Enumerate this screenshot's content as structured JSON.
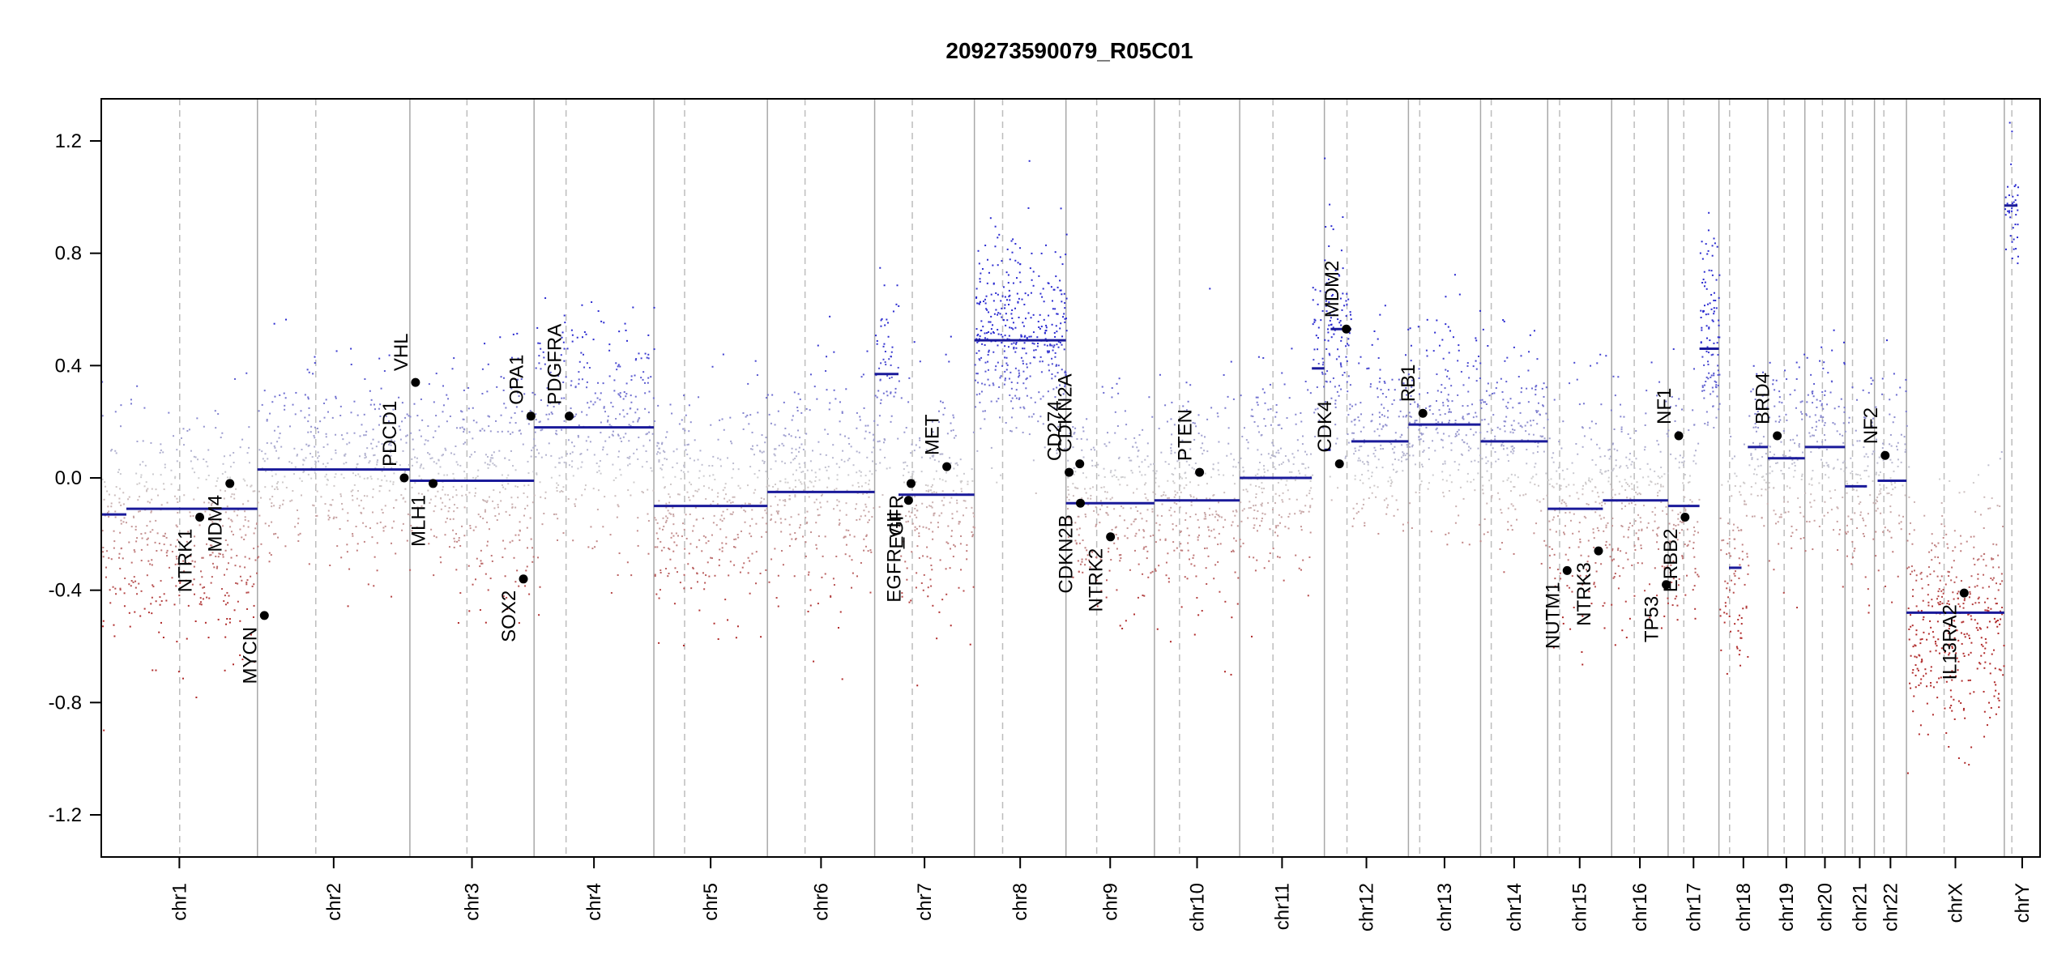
{
  "chart_data": {
    "type": "scatter",
    "title": "209273590079_R05C01",
    "xlabel": "",
    "ylabel": "",
    "ylim": [
      -1.35,
      1.35
    ],
    "y_ticks": [
      "1.2",
      "0.8",
      "0.4",
      "0.0",
      "-0.4",
      "-0.8",
      "-1.2"
    ],
    "y_tick_values": [
      1.2,
      0.8,
      0.4,
      0.0,
      -0.4,
      -0.8,
      -1.2
    ],
    "chromosomes": [
      {
        "name": "chr1",
        "start": 0,
        "end": 249,
        "centromere": 125
      },
      {
        "name": "chr2",
        "start": 249,
        "end": 492,
        "centromere": 342
      },
      {
        "name": "chr3",
        "start": 492,
        "end": 690,
        "centromere": 583
      },
      {
        "name": "chr4",
        "start": 690,
        "end": 881,
        "centromere": 741
      },
      {
        "name": "chr5",
        "start": 881,
        "end": 1062,
        "centromere": 930
      },
      {
        "name": "chr6",
        "start": 1062,
        "end": 1233,
        "centromere": 1122
      },
      {
        "name": "chr7",
        "start": 1233,
        "end": 1392,
        "centromere": 1293
      },
      {
        "name": "chr8",
        "start": 1392,
        "end": 1538,
        "centromere": 1437
      },
      {
        "name": "chr9",
        "start": 1538,
        "end": 1679,
        "centromere": 1587
      },
      {
        "name": "chr10",
        "start": 1679,
        "end": 1815,
        "centromere": 1719
      },
      {
        "name": "chr11",
        "start": 1815,
        "end": 1950,
        "centromere": 1868
      },
      {
        "name": "chr12",
        "start": 1950,
        "end": 2084,
        "centromere": 1986
      },
      {
        "name": "chr13",
        "start": 2084,
        "end": 2199,
        "centromere": 2102
      },
      {
        "name": "chr14",
        "start": 2199,
        "end": 2306,
        "centromere": 2216
      },
      {
        "name": "chr15",
        "start": 2306,
        "end": 2408,
        "centromere": 2325
      },
      {
        "name": "chr16",
        "start": 2408,
        "end": 2498,
        "centromere": 2444
      },
      {
        "name": "chr17",
        "start": 2498,
        "end": 2579,
        "centromere": 2523
      },
      {
        "name": "chr18",
        "start": 2579,
        "end": 2657,
        "centromere": 2596
      },
      {
        "name": "chr19",
        "start": 2657,
        "end": 2716,
        "centromere": 2683
      },
      {
        "name": "chr20",
        "start": 2716,
        "end": 2780,
        "centromere": 2744
      },
      {
        "name": "chr21",
        "start": 2780,
        "end": 2827,
        "centromere": 2792
      },
      {
        "name": "chr22",
        "start": 2827,
        "end": 2878,
        "centromere": 2842
      },
      {
        "name": "chrX",
        "start": 2878,
        "end": 3034,
        "centromere": 2938
      },
      {
        "name": "chrY",
        "start": 3034,
        "end": 3091,
        "centromere": 3046
      }
    ],
    "segments": [
      {
        "x0": 0,
        "x1": 40,
        "y": -0.13
      },
      {
        "x0": 40,
        "x1": 249,
        "y": -0.11
      },
      {
        "x0": 249,
        "x1": 492,
        "y": 0.03
      },
      {
        "x0": 492,
        "x1": 690,
        "y": -0.01
      },
      {
        "x0": 690,
        "x1": 881,
        "y": 0.18
      },
      {
        "x0": 881,
        "x1": 1062,
        "y": -0.1
      },
      {
        "x0": 1062,
        "x1": 1233,
        "y": -0.05
      },
      {
        "x0": 1233,
        "x1": 1271,
        "y": 0.37
      },
      {
        "x0": 1271,
        "x1": 1392,
        "y": -0.06
      },
      {
        "x0": 1392,
        "x1": 1538,
        "y": 0.49
      },
      {
        "x0": 1538,
        "x1": 1679,
        "y": -0.09
      },
      {
        "x0": 1679,
        "x1": 1815,
        "y": -0.08
      },
      {
        "x0": 1815,
        "x1": 1930,
        "y": 0.0
      },
      {
        "x0": 1930,
        "x1": 1950,
        "y": 0.39
      },
      {
        "x0": 1950,
        "x1": 1960,
        "y": 0.1
      },
      {
        "x0": 1960,
        "x1": 1993,
        "y": 0.53
      },
      {
        "x0": 1993,
        "x1": 2084,
        "y": 0.13
      },
      {
        "x0": 2084,
        "x1": 2199,
        "y": 0.19
      },
      {
        "x0": 2199,
        "x1": 2306,
        "y": 0.13
      },
      {
        "x0": 2306,
        "x1": 2394,
        "y": -0.11
      },
      {
        "x0": 2394,
        "x1": 2498,
        "y": -0.08
      },
      {
        "x0": 2498,
        "x1": 2548,
        "y": -0.1
      },
      {
        "x0": 2548,
        "x1": 2579,
        "y": 0.46
      },
      {
        "x0": 2595,
        "x1": 2615,
        "y": -0.32
      },
      {
        "x0": 2625,
        "x1": 2657,
        "y": 0.11
      },
      {
        "x0": 2657,
        "x1": 2716,
        "y": 0.07
      },
      {
        "x0": 2716,
        "x1": 2780,
        "y": 0.11
      },
      {
        "x0": 2780,
        "x1": 2815,
        "y": -0.03
      },
      {
        "x0": 2832,
        "x1": 2878,
        "y": -0.01
      },
      {
        "x0": 2878,
        "x1": 3034,
        "y": -0.48
      },
      {
        "x0": 3034,
        "x1": 3055,
        "y": 0.97
      }
    ],
    "point_regions": [
      {
        "x0": 0,
        "x1": 249,
        "mean": -0.2,
        "sd": 0.2,
        "n": 460
      },
      {
        "x0": 249,
        "x1": 492,
        "mean": 0.03,
        "sd": 0.17,
        "n": 400
      },
      {
        "x0": 492,
        "x1": 600,
        "mean": 0.0,
        "sd": 0.18,
        "n": 180
      },
      {
        "x0": 600,
        "x1": 690,
        "mean": -0.03,
        "sd": 0.24,
        "n": 180
      },
      {
        "x0": 690,
        "x1": 881,
        "mean": 0.18,
        "sd": 0.2,
        "n": 340
      },
      {
        "x0": 881,
        "x1": 1062,
        "mean": -0.1,
        "sd": 0.2,
        "n": 340
      },
      {
        "x0": 1062,
        "x1": 1233,
        "mean": -0.05,
        "sd": 0.2,
        "n": 320
      },
      {
        "x0": 1233,
        "x1": 1271,
        "mean": 0.37,
        "sd": 0.18,
        "n": 70
      },
      {
        "x0": 1271,
        "x1": 1392,
        "mean": -0.06,
        "sd": 0.2,
        "n": 230
      },
      {
        "x0": 1392,
        "x1": 1538,
        "mean": 0.49,
        "sd": 0.18,
        "n": 430
      },
      {
        "x0": 1538,
        "x1": 1679,
        "mean": -0.09,
        "sd": 0.18,
        "n": 260
      },
      {
        "x0": 1679,
        "x1": 1815,
        "mean": -0.08,
        "sd": 0.2,
        "n": 250
      },
      {
        "x0": 1815,
        "x1": 1930,
        "mean": 0.0,
        "sd": 0.18,
        "n": 220
      },
      {
        "x0": 1930,
        "x1": 1993,
        "mean": 0.48,
        "sd": 0.2,
        "n": 150
      },
      {
        "x0": 1993,
        "x1": 2084,
        "mean": 0.13,
        "sd": 0.2,
        "n": 180
      },
      {
        "x0": 2084,
        "x1": 2199,
        "mean": 0.19,
        "sd": 0.18,
        "n": 220
      },
      {
        "x0": 2199,
        "x1": 2306,
        "mean": 0.13,
        "sd": 0.17,
        "n": 200
      },
      {
        "x0": 2306,
        "x1": 2408,
        "mean": -0.11,
        "sd": 0.2,
        "n": 200
      },
      {
        "x0": 2408,
        "x1": 2498,
        "mean": -0.08,
        "sd": 0.2,
        "n": 180
      },
      {
        "x0": 2498,
        "x1": 2548,
        "mean": -0.1,
        "sd": 0.2,
        "n": 100
      },
      {
        "x0": 2548,
        "x1": 2579,
        "mean": 0.5,
        "sd": 0.2,
        "n": 110
      },
      {
        "x0": 2579,
        "x1": 2625,
        "mean": -0.3,
        "sd": 0.2,
        "n": 90
      },
      {
        "x0": 2625,
        "x1": 2657,
        "mean": 0.11,
        "sd": 0.15,
        "n": 60
      },
      {
        "x0": 2657,
        "x1": 2716,
        "mean": 0.07,
        "sd": 0.18,
        "n": 110
      },
      {
        "x0": 2716,
        "x1": 2780,
        "mean": 0.11,
        "sd": 0.17,
        "n": 120
      },
      {
        "x0": 2780,
        "x1": 2827,
        "mean": -0.03,
        "sd": 0.18,
        "n": 80
      },
      {
        "x0": 2827,
        "x1": 2878,
        "mean": -0.01,
        "sd": 0.18,
        "n": 90
      },
      {
        "x0": 2878,
        "x1": 3034,
        "mean": -0.48,
        "sd": 0.22,
        "n": 380
      },
      {
        "x0": 3034,
        "x1": 3055,
        "mean": 0.97,
        "sd": 0.12,
        "n": 40
      }
    ],
    "genes": [
      {
        "name": "NTRK1",
        "x": 157,
        "y": -0.14,
        "label_side": "below"
      },
      {
        "name": "MDM4",
        "x": 205,
        "y": -0.02,
        "label_side": "below"
      },
      {
        "name": "MYCN",
        "x": 260,
        "y": -0.49,
        "label_side": "below"
      },
      {
        "name": "PDCD1",
        "x": 483,
        "y": 0.0,
        "label_side": "above"
      },
      {
        "name": "VHL",
        "x": 501,
        "y": 0.34,
        "label_side": "above"
      },
      {
        "name": "MLH1",
        "x": 529,
        "y": -0.02,
        "label_side": "below"
      },
      {
        "name": "SOX2",
        "x": 673,
        "y": -0.36,
        "label_side": "below"
      },
      {
        "name": "OPA1",
        "x": 685,
        "y": 0.22,
        "label_side": "above"
      },
      {
        "name": "PDGFRA",
        "x": 746,
        "y": 0.22,
        "label_side": "above"
      },
      {
        "name": "EGFR_vIII",
        "x": 1287,
        "y": -0.08,
        "label_side": "below"
      },
      {
        "name": "EGFR",
        "x": 1291,
        "y": -0.02,
        "label_side": "below"
      },
      {
        "name": "MET",
        "x": 1348,
        "y": 0.04,
        "label_side": "above"
      },
      {
        "name": "CD274",
        "x": 1543,
        "y": 0.02,
        "label_side": "above"
      },
      {
        "name": "CDKN2A",
        "x": 1560,
        "y": 0.05,
        "label_side": "above"
      },
      {
        "name": "CDKN2B",
        "x": 1561,
        "y": -0.09,
        "label_side": "below"
      },
      {
        "name": "NTRK2",
        "x": 1609,
        "y": -0.21,
        "label_side": "below"
      },
      {
        "name": "PTEN",
        "x": 1751,
        "y": 0.02,
        "label_side": "above"
      },
      {
        "name": "CDK4",
        "x": 1974,
        "y": 0.05,
        "label_side": "above"
      },
      {
        "name": "MDM2",
        "x": 1985,
        "y": 0.53,
        "label_side": "above"
      },
      {
        "name": "RB1",
        "x": 2107,
        "y": 0.23,
        "label_side": "above"
      },
      {
        "name": "NUTM1",
        "x": 2337,
        "y": -0.33,
        "label_side": "below"
      },
      {
        "name": "NTRK3",
        "x": 2387,
        "y": -0.26,
        "label_side": "below"
      },
      {
        "name": "TP53",
        "x": 2495,
        "y": -0.38,
        "label_side": "below"
      },
      {
        "name": "NF1",
        "x": 2515,
        "y": 0.15,
        "label_side": "above"
      },
      {
        "name": "ERBB2",
        "x": 2525,
        "y": -0.14,
        "label_side": "below"
      },
      {
        "name": "BRD4",
        "x": 2672,
        "y": 0.15,
        "label_side": "above"
      },
      {
        "name": "NF2",
        "x": 2844,
        "y": 0.08,
        "label_side": "above"
      },
      {
        "name": "IL13RA2",
        "x": 2970,
        "y": -0.41,
        "label_side": "below"
      }
    ],
    "colors": {
      "segment": "#1a1a9a",
      "high": "#2b2bd0",
      "mid": "#cfcfcf",
      "low": "#b02a2a",
      "chrom_border": "#a8a8a8",
      "centromere": "#bdbdbd",
      "gene_point": "#000000"
    },
    "grid": false,
    "legend": "none"
  }
}
